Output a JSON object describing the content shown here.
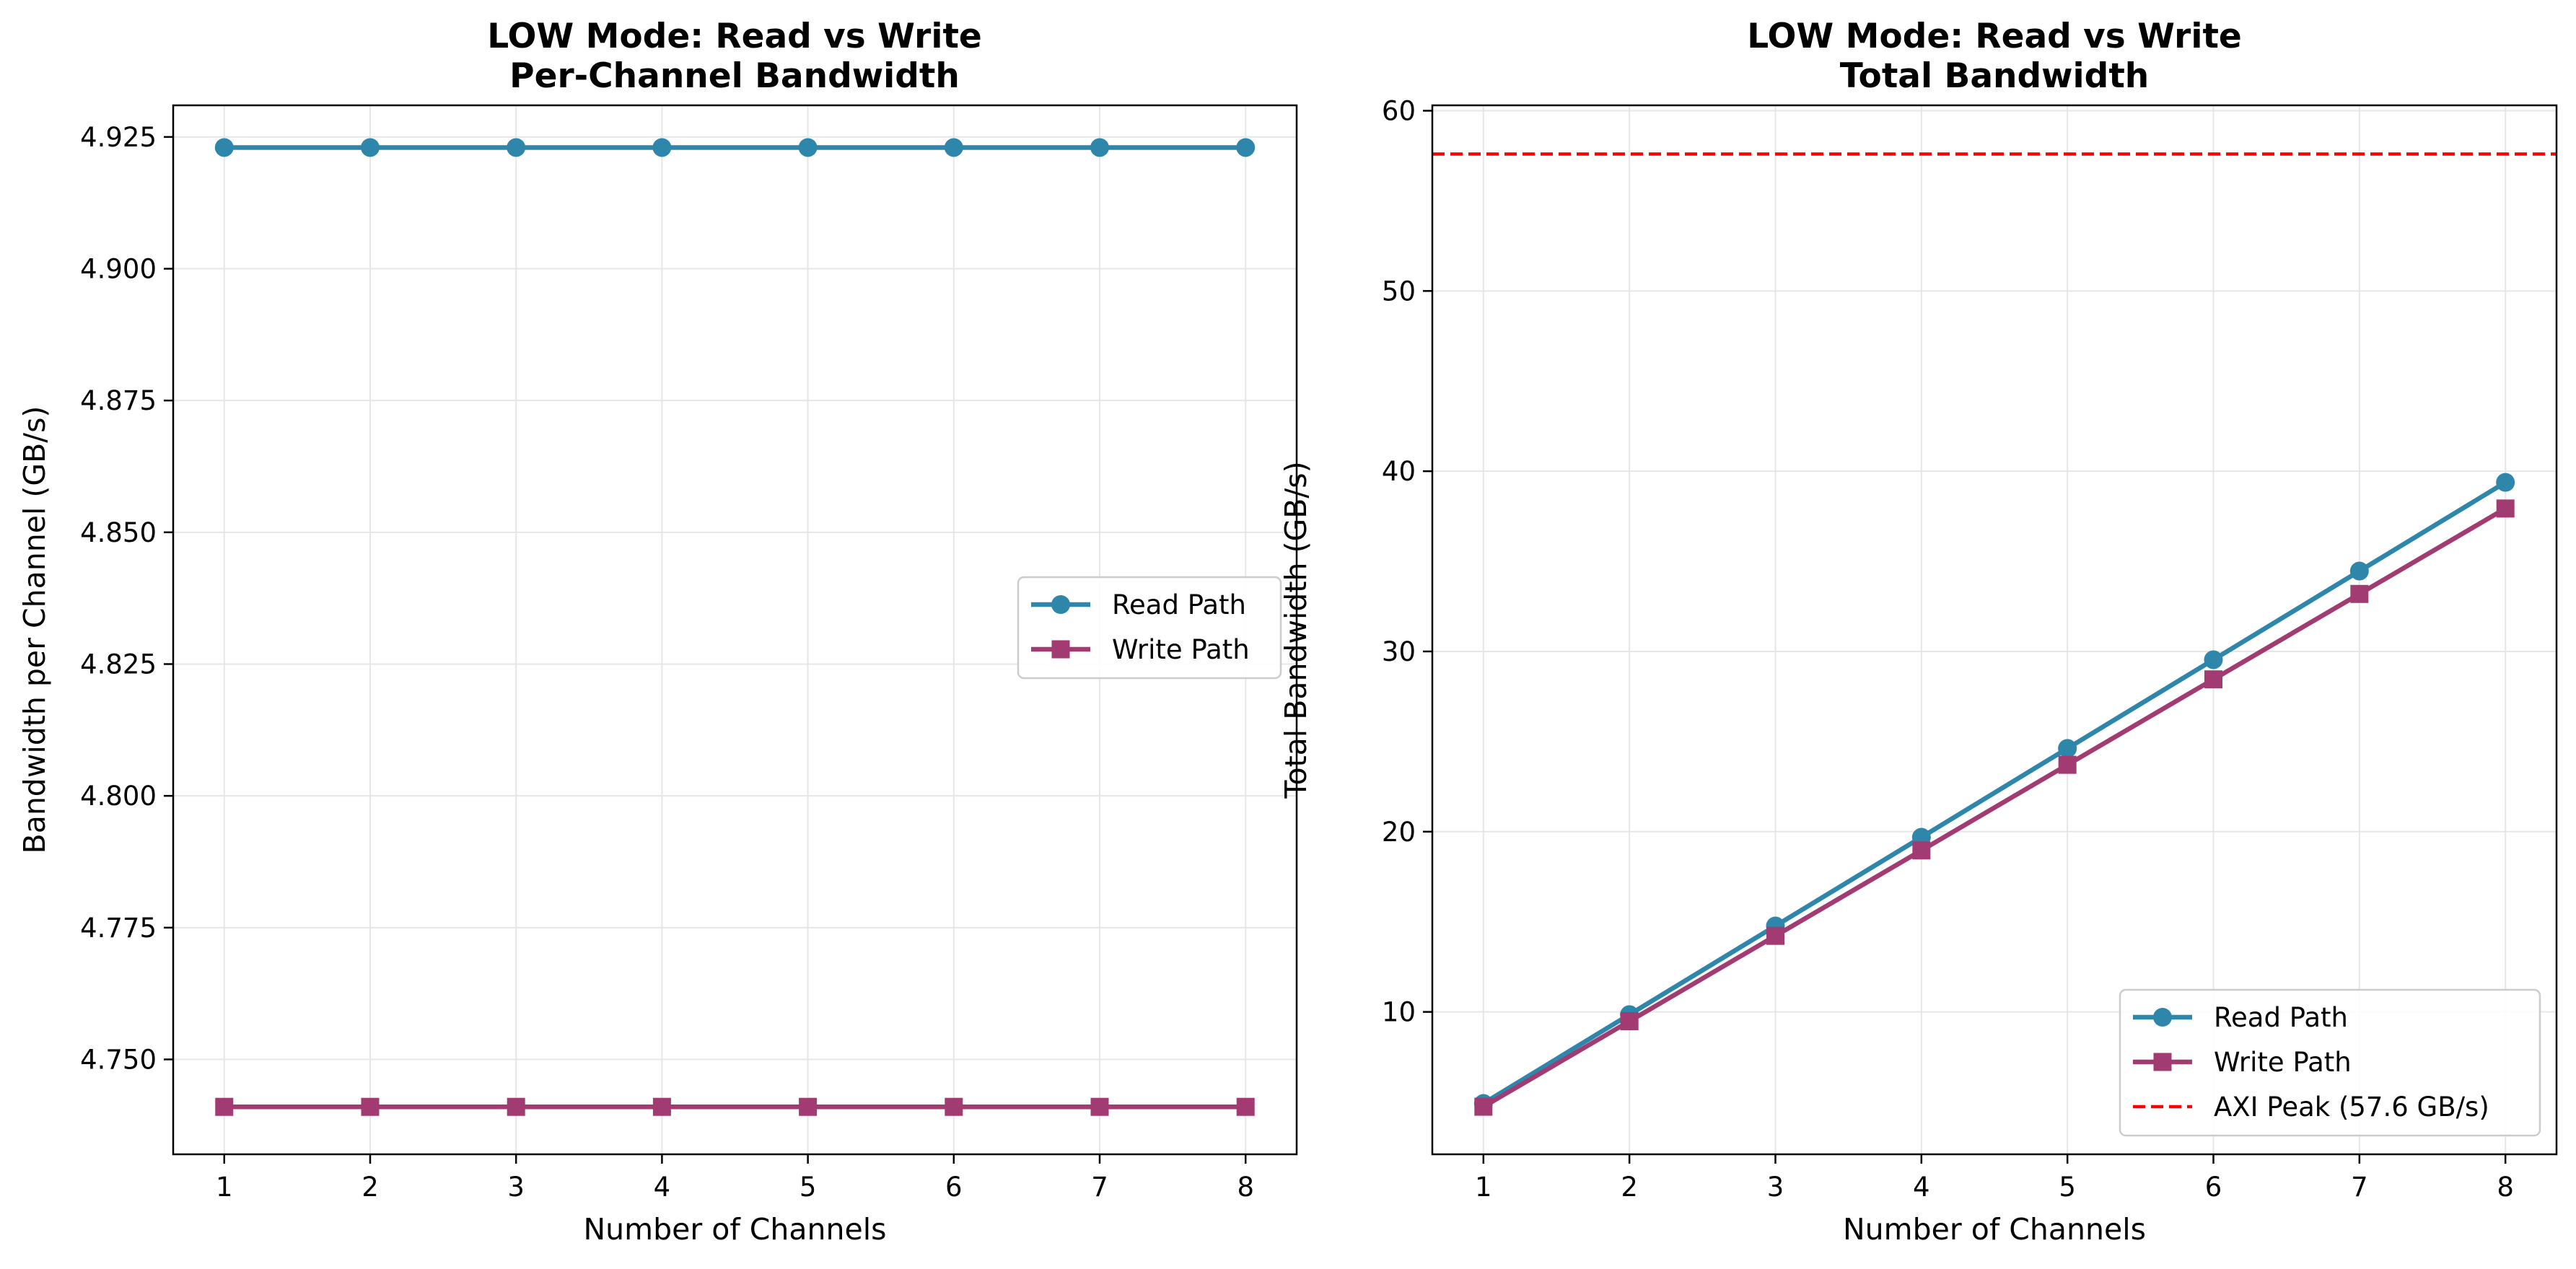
{
  "colors": {
    "read": "#2e86ab",
    "write": "#a23b72",
    "peak": "#ff0000",
    "grid": "#e6e6e6",
    "axes": "#000000"
  },
  "chart_data": [
    {
      "type": "line",
      "title_lines": [
        "LOW Mode: Read vs Write",
        "Per-Channel Bandwidth"
      ],
      "xlabel": "Number of Channels",
      "ylabel": "Bandwidth per Channel (GB/s)",
      "x": [
        1,
        2,
        3,
        4,
        5,
        6,
        7,
        8
      ],
      "xlim": [
        0.65,
        8.35
      ],
      "ylim": [
        4.732,
        4.931
      ],
      "yticks": [
        4.75,
        4.775,
        4.8,
        4.825,
        4.85,
        4.875,
        4.9,
        4.925
      ],
      "ytick_labels": [
        "4.750",
        "4.775",
        "4.800",
        "4.825",
        "4.850",
        "4.875",
        "4.900",
        "4.925"
      ],
      "grid": true,
      "legend_position": "center-right",
      "series": [
        {
          "name": "Read Path",
          "marker": "circle",
          "color_key": "read",
          "values": [
            4.923,
            4.923,
            4.923,
            4.923,
            4.923,
            4.923,
            4.923,
            4.923
          ]
        },
        {
          "name": "Write Path",
          "marker": "square",
          "color_key": "write",
          "values": [
            4.741,
            4.741,
            4.741,
            4.741,
            4.741,
            4.741,
            4.741,
            4.741
          ]
        }
      ]
    },
    {
      "type": "line",
      "title_lines": [
        "LOW Mode: Read vs Write",
        "Total Bandwidth"
      ],
      "xlabel": "Number of Channels",
      "ylabel": "Total Bandwidth (GB/s)",
      "x": [
        1,
        2,
        3,
        4,
        5,
        6,
        7,
        8
      ],
      "xlim": [
        0.65,
        8.35
      ],
      "ylim": [
        2.1,
        60.3
      ],
      "yticks": [
        10,
        20,
        30,
        40,
        50,
        60
      ],
      "ytick_labels": [
        "10",
        "20",
        "30",
        "40",
        "50",
        "60"
      ],
      "grid": true,
      "legend_position": "lower-right",
      "series": [
        {
          "name": "Read Path",
          "marker": "circle",
          "color_key": "read",
          "values": [
            4.92,
            9.85,
            14.77,
            19.69,
            24.62,
            29.54,
            34.46,
            39.38
          ]
        },
        {
          "name": "Write Path",
          "marker": "square",
          "color_key": "write",
          "values": [
            4.74,
            9.48,
            14.22,
            18.96,
            23.71,
            28.45,
            33.19,
            37.93
          ]
        }
      ],
      "reference_lines": [
        {
          "name": "AXI Peak (57.6 GB/s)",
          "value": 57.6,
          "style": "dashed",
          "color_key": "peak"
        }
      ]
    }
  ]
}
